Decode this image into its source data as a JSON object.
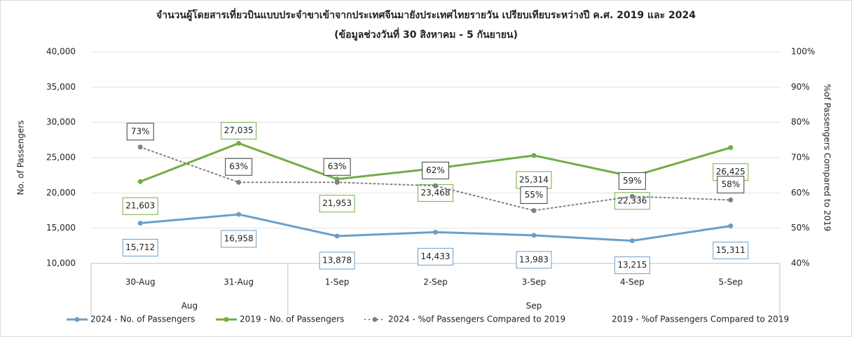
{
  "chart_data": {
    "type": "line",
    "title": "จำนวนผู้โดยสารเที่ยวบินแบบประจำขาเข้าจากประเทศจีนมายังประเทศไทยรายวัน เปรียบเทียบระหว่างปี ค.ศ. 2019 และ 2024",
    "subtitle": "(ข้อมูลช่วงวันที่ 30 สิงหาคม - 5 กันยายน)",
    "y_label": "No. of Passengers",
    "y2_label": "%of Passengers Compared to 2019",
    "categories": [
      "30-Aug",
      "31-Aug",
      "1-Sep",
      "2-Sep",
      "3-Sep",
      "4-Sep",
      "5-Sep"
    ],
    "groups": [
      {
        "name": "Aug",
        "span": 2
      },
      {
        "name": "Sep",
        "span": 5
      }
    ],
    "ylim": [
      10000,
      40000
    ],
    "yticks": [
      {
        "value": 10000,
        "label": "10,000"
      },
      {
        "value": 15000,
        "label": "15,000"
      },
      {
        "value": 20000,
        "label": "20,000"
      },
      {
        "value": 25000,
        "label": "25,000"
      },
      {
        "value": 30000,
        "label": "30,000"
      },
      {
        "value": 35000,
        "label": "35,000"
      },
      {
        "value": 40000,
        "label": "40,000"
      }
    ],
    "y2lim": [
      40,
      100
    ],
    "y2ticks": [
      {
        "value": 40,
        "label": "40%"
      },
      {
        "value": 50,
        "label": "50%"
      },
      {
        "value": 60,
        "label": "60%"
      },
      {
        "value": 70,
        "label": "70%"
      },
      {
        "value": 80,
        "label": "80%"
      },
      {
        "value": 90,
        "label": "90%"
      },
      {
        "value": 100,
        "label": "100%"
      }
    ],
    "grid": true,
    "series": [
      {
        "name": "2024 - No. of Passengers",
        "color": "#6a9fcb",
        "values": [
          15712,
          16958,
          13878,
          14433,
          13983,
          13215,
          15311
        ],
        "value_labels": [
          "15,712",
          "16,958",
          "13,878",
          "14,433",
          "13,983",
          "13,215",
          "15,311"
        ]
      },
      {
        "name": "2019 - No. of Passengers",
        "color": "#70ad47",
        "values": [
          21603,
          27035,
          21953,
          23468,
          25314,
          22336,
          26425
        ],
        "value_labels": [
          "21,603",
          "27,035",
          "21,953",
          "23,468",
          "25,314",
          "22,336",
          "26,425"
        ]
      },
      {
        "name": "2024 - %of Passengers Compared to 2019",
        "color": "#808080",
        "axis": "y2",
        "dashed": true,
        "values": [
          73,
          63,
          63,
          62,
          55,
          59,
          58
        ],
        "value_labels": [
          "73%",
          "63%",
          "63%",
          "62%",
          "55%",
          "59%",
          "58%"
        ]
      },
      {
        "name": "2019 - %of Passengers Compared to 2019",
        "axis": "y2"
      }
    ]
  }
}
